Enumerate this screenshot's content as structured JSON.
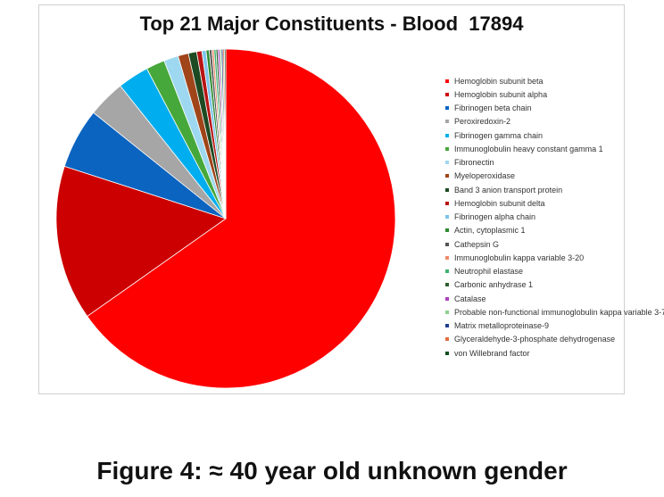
{
  "chart_data": {
    "type": "pie",
    "title": "Top 21 Major Constituents - Blood  17894",
    "legend_position": "right",
    "slices": [
      {
        "label": "Hemoglobin subunit beta",
        "value": 65.8,
        "color": "#ff0000"
      },
      {
        "label": "Hemoglobin subunit alpha",
        "value": 14.9,
        "color": "#cc0000"
      },
      {
        "label": "Fibrinogen beta chain",
        "value": 5.8,
        "color": "#0a64c0"
      },
      {
        "label": "Peroxiredoxin-2",
        "value": 3.6,
        "color": "#a6a6a6"
      },
      {
        "label": "Fibrinogen gamma chain",
        "value": 3.0,
        "color": "#00aeef"
      },
      {
        "label": "Immunoglobulin heavy constant gamma 1",
        "value": 1.8,
        "color": "#46a83a"
      },
      {
        "label": "Fibronectin",
        "value": 1.4,
        "color": "#9ed8f0"
      },
      {
        "label": "Myeloperoxidase",
        "value": 1.0,
        "color": "#a0441a"
      },
      {
        "label": "Band 3 anion transport protein",
        "value": 0.8,
        "color": "#1d4a22"
      },
      {
        "label": "Hemoglobin subunit delta",
        "value": 0.5,
        "color": "#b81414"
      },
      {
        "label": "Fibrinogen alpha chain",
        "value": 0.4,
        "color": "#7ec4ea"
      },
      {
        "label": "Actin, cytoplasmic 1",
        "value": 0.3,
        "color": "#2e8b2e"
      },
      {
        "label": "Cathepsin G",
        "value": 0.25,
        "color": "#555555"
      },
      {
        "label": "Immunoglobulin kappa variable 3-20",
        "value": 0.2,
        "color": "#f08a6a"
      },
      {
        "label": "Neutrophil elastase",
        "value": 0.2,
        "color": "#3cb371"
      },
      {
        "label": "Carbonic anhydrase 1",
        "value": 0.18,
        "color": "#2f5f2f"
      },
      {
        "label": "Catalase",
        "value": 0.17,
        "color": "#b040c0"
      },
      {
        "label": "Probable non-functional immunoglobulin kappa variable 3-7",
        "value": 0.16,
        "color": "#8fd08f"
      },
      {
        "label": "Matrix metalloproteinase-9",
        "value": 0.15,
        "color": "#1f3f8f"
      },
      {
        "label": "Glyceraldehyde-3-phosphate dehydrogenase",
        "value": 0.14,
        "color": "#e07040"
      },
      {
        "label": "von Willebrand factor",
        "value": 0.13,
        "color": "#0f4f1f"
      }
    ]
  },
  "caption": "Figure 4: ≈ 40 year old unknown gender"
}
